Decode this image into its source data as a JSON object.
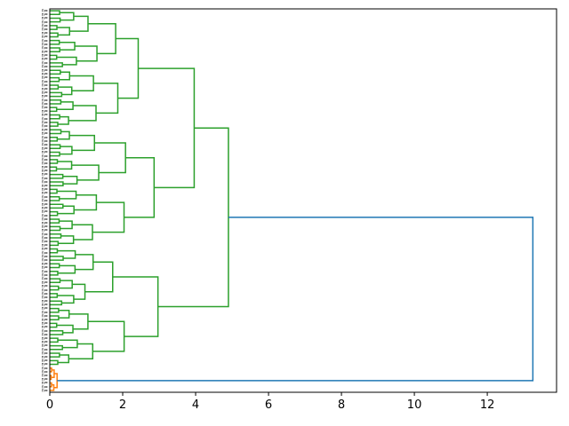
{
  "chart_data": {
    "type": "dendrogram",
    "orientation": "horizontal",
    "title": "",
    "xlabel": "",
    "ylabel": "",
    "xlim": [
      0,
      13.9
    ],
    "xticks": [
      0,
      2,
      4,
      6,
      8,
      10,
      12
    ],
    "grid": false,
    "colors": {
      "cluster_a": "#2ca02c",
      "cluster_b": "#ff7f0e",
      "root": "#1f77b4",
      "axes": "#000000"
    },
    "top_level_clusters": [
      {
        "name": "",
        "color": "#2ca02c",
        "leaf_count": 96,
        "merge_height": 4.9
      },
      {
        "name": "",
        "color": "#ff7f0e",
        "leaf_count": 7,
        "merge_height": 0.2
      }
    ],
    "root_merge_height": 13.25,
    "leaf_label_prefix": "n=",
    "leaf_labels_note": ""
  }
}
